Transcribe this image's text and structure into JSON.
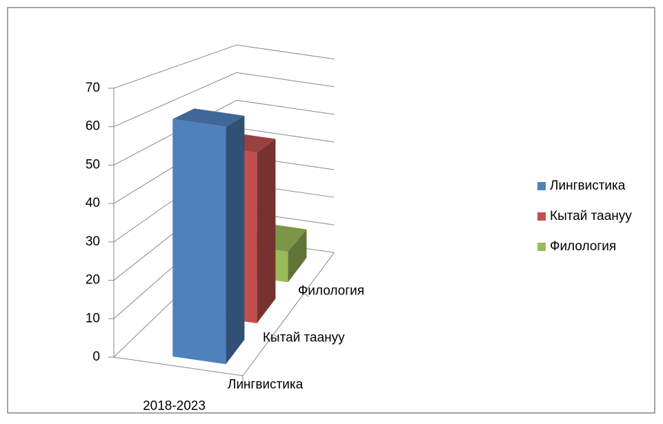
{
  "chart_data": {
    "type": "bar3d",
    "categories": [
      "2018-2023"
    ],
    "series": [
      {
        "name": "Лингвистика",
        "color": "#4f81bd",
        "values": [
          63
        ]
      },
      {
        "name": "Кытай таануу",
        "color": "#c0504d",
        "values": [
          50
        ]
      },
      {
        "name": "Филология",
        "color": "#9bbb59",
        "values": [
          10
        ]
      }
    ],
    "ylim": [
      0,
      70
    ],
    "yticks": [
      0,
      10,
      20,
      30,
      40,
      50,
      60,
      70
    ],
    "grid": true,
    "legend": "right"
  }
}
